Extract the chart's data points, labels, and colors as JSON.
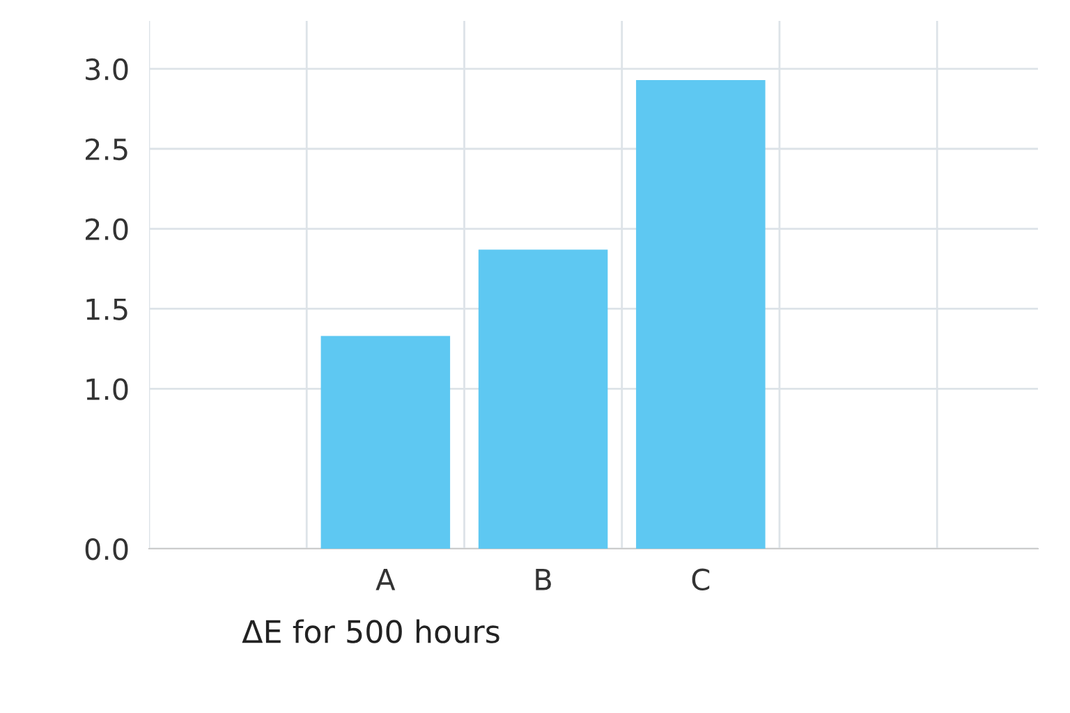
{
  "chart_data": {
    "type": "bar",
    "xlabel": "ΔE for 500 hours",
    "categories": [
      null,
      "A",
      "B",
      "C",
      null,
      null
    ],
    "values": [
      null,
      1.33,
      1.87,
      2.93,
      null,
      null
    ],
    "color": "#5ec8f2",
    "ylim": [
      0,
      3.3
    ],
    "yticks": [
      {
        "value": 0,
        "label": "0.0"
      },
      {
        "value": 1,
        "label": "1.0"
      },
      1.5,
      {
        "value": 2,
        "label": "2.0"
      },
      2.5,
      {
        "value": 3,
        "label": "3.0"
      }
    ],
    "grid": true
  }
}
